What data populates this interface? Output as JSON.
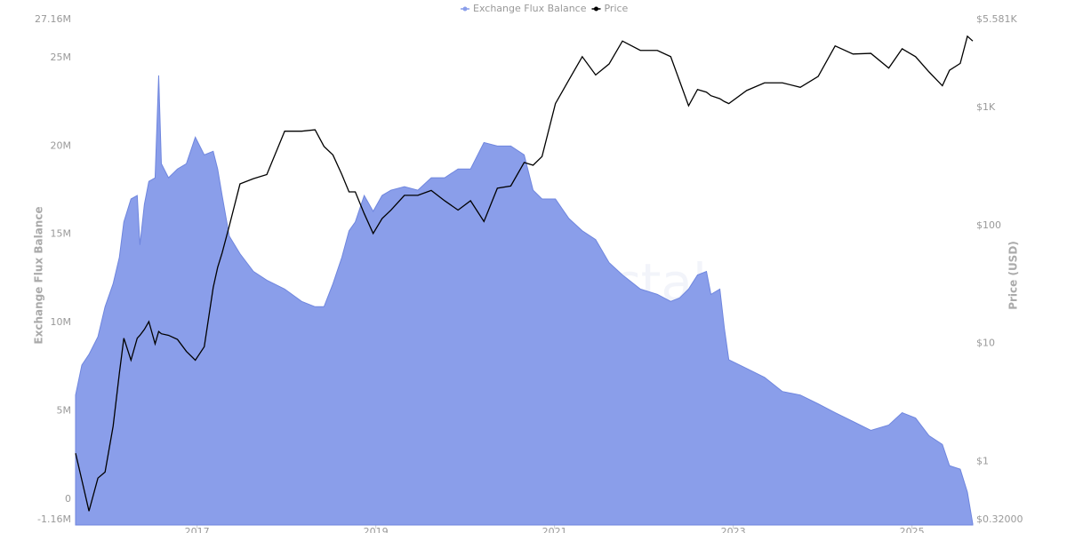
{
  "chart_data": {
    "type": "area-line",
    "legend": "top",
    "watermark": "Alphractal",
    "y_title": "Exchange Flux Balance",
    "y2_title": "Price (USD)",
    "x": [
      2015.64,
      2015.71,
      2015.79,
      2015.89,
      2015.97,
      2016.06,
      2016.13,
      2016.18,
      2016.26,
      2016.33,
      2016.36,
      2016.41,
      2016.46,
      2016.53,
      2016.57,
      2016.6,
      2016.68,
      2016.78,
      2016.88,
      2016.98,
      2017.08,
      2017.18,
      2017.23,
      2017.28,
      2017.36,
      2017.48,
      2017.63,
      2017.78,
      2017.98,
      2018.17,
      2018.32,
      2018.42,
      2018.52,
      2018.62,
      2018.7,
      2018.77,
      2018.87,
      2018.97,
      2019.07,
      2019.17,
      2019.32,
      2019.47,
      2019.62,
      2019.77,
      2019.92,
      2020.06,
      2020.21,
      2020.36,
      2020.51,
      2020.66,
      2020.76,
      2020.86,
      2021.01,
      2021.16,
      2021.31,
      2021.46,
      2021.61,
      2021.76,
      2021.96,
      2022.15,
      2022.3,
      2022.4,
      2022.5,
      2022.6,
      2022.7,
      2022.75,
      2022.85,
      2022.9,
      2022.95,
      2023.15,
      2023.35,
      2023.55,
      2023.75,
      2023.95,
      2024.14,
      2024.34,
      2024.54,
      2024.74,
      2024.89,
      2025.04,
      2025.19,
      2025.34,
      2025.42,
      2025.54,
      2025.62,
      2025.68
    ],
    "xlim": [
      2015.64,
      2025.68
    ],
    "xticks": [
      2017,
      2019,
      2021,
      2023,
      2025
    ],
    "ylim": [
      -1160000,
      27160000
    ],
    "yticks": [
      {
        "value": -1160000,
        "label": "-1.16M"
      },
      0,
      {
        "value": 5000000,
        "label": "5M"
      },
      {
        "value": 10000000,
        "label": "10M"
      },
      {
        "value": 15000000,
        "label": "15M"
      },
      {
        "value": 20000000,
        "label": "20M"
      },
      {
        "value": 25000000,
        "label": "25M"
      },
      {
        "value": 27160000,
        "label": "27.16M"
      }
    ],
    "y2lim": [
      0.32,
      5581
    ],
    "y2scale": "log",
    "y2ticks": [
      {
        "value": 0.32,
        "label": "$0.32000"
      },
      {
        "value": 1,
        "label": "$1"
      },
      {
        "value": 10,
        "label": "$10"
      },
      {
        "value": 100,
        "label": "$100"
      },
      {
        "value": 1000,
        "label": "$1K"
      },
      {
        "value": 5581,
        "label": "$5.581K"
      }
    ],
    "series": [
      {
        "name": "Exchange Flux Balance",
        "color": "#8a9eea",
        "axis": "y",
        "values": [
          6200000,
          7900000,
          8500000,
          9500000,
          11200000,
          12500000,
          14000000,
          16000000,
          17300000,
          17500000,
          14700000,
          17000000,
          18300000,
          18500000,
          24300000,
          19300000,
          18500000,
          19000000,
          19300000,
          20800000,
          19800000,
          20000000,
          19000000,
          17500000,
          15200000,
          14200000,
          13200000,
          12700000,
          12200000,
          11500000,
          11200000,
          11200000,
          12500000,
          14000000,
          15500000,
          16000000,
          17500000,
          16600000,
          17500000,
          17800000,
          18000000,
          17800000,
          18500000,
          18500000,
          19000000,
          19000000,
          20500000,
          20300000,
          20300000,
          19800000,
          17800000,
          17300000,
          17300000,
          16200000,
          15500000,
          15000000,
          13700000,
          13000000,
          12200000,
          11900000,
          11500000,
          11700000,
          12200000,
          13000000,
          13200000,
          11900000,
          12200000,
          10000000,
          8200000,
          7700000,
          7200000,
          6400000,
          6200000,
          5700000,
          5200000,
          4700000,
          4200000,
          4500000,
          5200000,
          4900000,
          3900000,
          3400000,
          2200000,
          2000000,
          700000,
          -1100000
        ]
      },
      {
        "name": "Price",
        "color": "#000000",
        "axis": "y2",
        "values": [
          1.3,
          0.77,
          0.42,
          0.8,
          0.9,
          2.2,
          6.2,
          12.3,
          8,
          12.3,
          13,
          14.6,
          17,
          11,
          14,
          13.4,
          13,
          12,
          9.5,
          8,
          10.4,
          33,
          49,
          65,
          110,
          250,
          277,
          300,
          700,
          700,
          720,
          520,
          440,
          300,
          214,
          214,
          140,
          95,
          127,
          150,
          200,
          200,
          220,
          180,
          150,
          180,
          120,
          230,
          240,
          380,
          360,
          427,
          1200,
          1900,
          3000,
          2100,
          2600,
          4070,
          3390,
          3390,
          3000,
          1860,
          1150,
          1580,
          1500,
          1400,
          1320,
          1250,
          1200,
          1550,
          1800,
          1800,
          1650,
          2040,
          3700,
          3160,
          3200,
          2400,
          3500,
          3000,
          2230,
          1700,
          2300,
          2630,
          4470,
          4070
        ]
      }
    ]
  }
}
